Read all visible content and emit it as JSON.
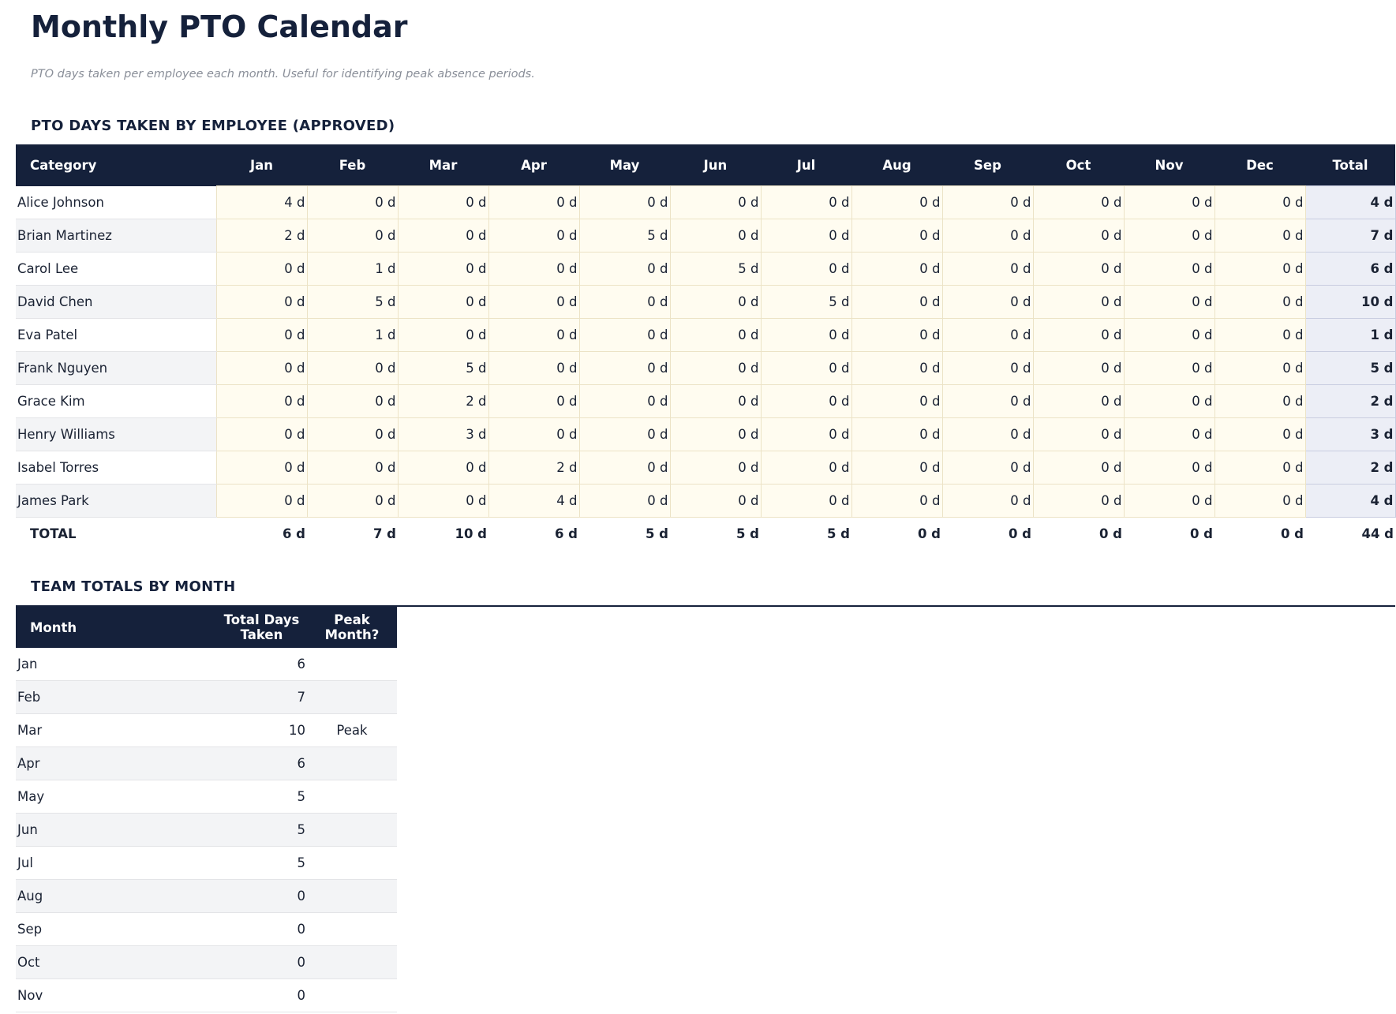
{
  "header": {
    "title": "Monthly PTO Calendar",
    "subtitle": "PTO days taken per employee each month. Useful for identifying peak absence periods."
  },
  "section1": {
    "title": "PTO DAYS TAKEN BY EMPLOYEE (APPROVED)",
    "table": {
      "header": [
        "Category",
        "Jan",
        "Feb",
        "Mar",
        "Apr",
        "May",
        "Jun",
        "Jul",
        "Aug",
        "Sep",
        "Oct",
        "Nov",
        "Dec",
        "Total"
      ],
      "rows": [
        [
          "Alice Johnson",
          "4 d",
          "0 d",
          "0 d",
          "0 d",
          "0 d",
          "0 d",
          "0 d",
          "0 d",
          "0 d",
          "0 d",
          "0 d",
          "0 d",
          "4 d"
        ],
        [
          "Brian Martinez",
          "2 d",
          "0 d",
          "0 d",
          "0 d",
          "5 d",
          "0 d",
          "0 d",
          "0 d",
          "0 d",
          "0 d",
          "0 d",
          "0 d",
          "7 d"
        ],
        [
          "Carol Lee",
          "0 d",
          "1 d",
          "0 d",
          "0 d",
          "0 d",
          "5 d",
          "0 d",
          "0 d",
          "0 d",
          "0 d",
          "0 d",
          "0 d",
          "6 d"
        ],
        [
          "David Chen",
          "0 d",
          "5 d",
          "0 d",
          "0 d",
          "0 d",
          "0 d",
          "5 d",
          "0 d",
          "0 d",
          "0 d",
          "0 d",
          "0 d",
          "10 d"
        ],
        [
          "Eva Patel",
          "0 d",
          "1 d",
          "0 d",
          "0 d",
          "0 d",
          "0 d",
          "0 d",
          "0 d",
          "0 d",
          "0 d",
          "0 d",
          "0 d",
          "1 d"
        ],
        [
          "Frank Nguyen",
          "0 d",
          "0 d",
          "5 d",
          "0 d",
          "0 d",
          "0 d",
          "0 d",
          "0 d",
          "0 d",
          "0 d",
          "0 d",
          "0 d",
          "5 d"
        ],
        [
          "Grace Kim",
          "0 d",
          "0 d",
          "2 d",
          "0 d",
          "0 d",
          "0 d",
          "0 d",
          "0 d",
          "0 d",
          "0 d",
          "0 d",
          "0 d",
          "2 d"
        ],
        [
          "Henry Williams",
          "0 d",
          "0 d",
          "3 d",
          "0 d",
          "0 d",
          "0 d",
          "0 d",
          "0 d",
          "0 d",
          "0 d",
          "0 d",
          "0 d",
          "3 d"
        ],
        [
          "Isabel Torres",
          "0 d",
          "0 d",
          "0 d",
          "2 d",
          "0 d",
          "0 d",
          "0 d",
          "0 d",
          "0 d",
          "0 d",
          "0 d",
          "0 d",
          "2 d"
        ],
        [
          "James Park",
          "0 d",
          "0 d",
          "0 d",
          "4 d",
          "0 d",
          "0 d",
          "0 d",
          "0 d",
          "0 d",
          "0 d",
          "0 d",
          "0 d",
          "4 d"
        ]
      ],
      "total": [
        "TOTAL",
        "6 d",
        "7 d",
        "10 d",
        "6 d",
        "5 d",
        "5 d",
        "5 d",
        "0 d",
        "0 d",
        "0 d",
        "0 d",
        "0 d",
        "44 d"
      ]
    }
  },
  "section2": {
    "title": "TEAM TOTALS BY MONTH",
    "table": {
      "header": [
        "Month",
        "Total Days Taken",
        "Peak Month?"
      ],
      "rows": [
        [
          "Jan",
          "6"
        ],
        [
          "Feb",
          "7"
        ],
        [
          "Mar",
          "10",
          "Peak"
        ],
        [
          "Apr",
          "6"
        ],
        [
          "May",
          "5"
        ],
        [
          "Jun",
          "5"
        ],
        [
          "Jul",
          "5"
        ],
        [
          "Aug",
          "0"
        ],
        [
          "Sep",
          "0"
        ],
        [
          "Oct",
          "0"
        ],
        [
          "Nov",
          "0"
        ]
      ]
    }
  }
}
